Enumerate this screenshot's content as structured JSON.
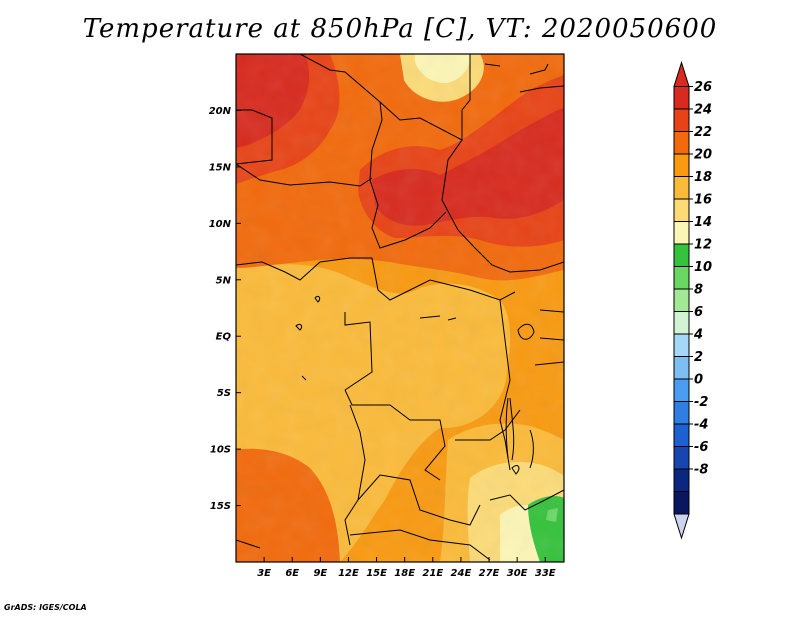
{
  "title": "Temperature at 850hPa [C], VT: 2020050600",
  "credit": "GrADS: IGES/COLA",
  "map": {
    "lon_range": [
      0,
      35
    ],
    "lat_range": [
      -20,
      25
    ],
    "x_ticks": [
      "3E",
      "6E",
      "9E",
      "12E",
      "15E",
      "18E",
      "21E",
      "24E",
      "27E",
      "30E",
      "33E"
    ],
    "x_tick_values": [
      3,
      6,
      9,
      12,
      15,
      18,
      21,
      24,
      27,
      30,
      33
    ],
    "y_ticks": [
      "20N",
      "15N",
      "10N",
      "5N",
      "EQ",
      "5S",
      "10S",
      "15S"
    ],
    "y_tick_values": [
      20,
      15,
      10,
      5,
      0,
      -5,
      -10,
      -15
    ]
  },
  "colorbar": {
    "labels": [
      "26",
      "24",
      "22",
      "20",
      "18",
      "16",
      "14",
      "12",
      "10",
      "8",
      "6",
      "4",
      "2",
      "0",
      "-2",
      "-4",
      "-6",
      "-8"
    ],
    "colors": [
      "#d82a1e",
      "#e84316",
      "#f26a0c",
      "#f99a11",
      "#fbbb3a",
      "#fcdb77",
      "#fcf6b6",
      "#35c23c",
      "#6ad765",
      "#a3e895",
      "#d3f4d4",
      "#a4d7f8",
      "#7dbef3",
      "#4a9df0",
      "#2f7ee2",
      "#1d60d2",
      "#1746b0",
      "#0c2780",
      "#0a1660"
    ],
    "top_arrow_color": "#d82a1e",
    "bottom_arrow_color": "#ccd4ee"
  }
}
